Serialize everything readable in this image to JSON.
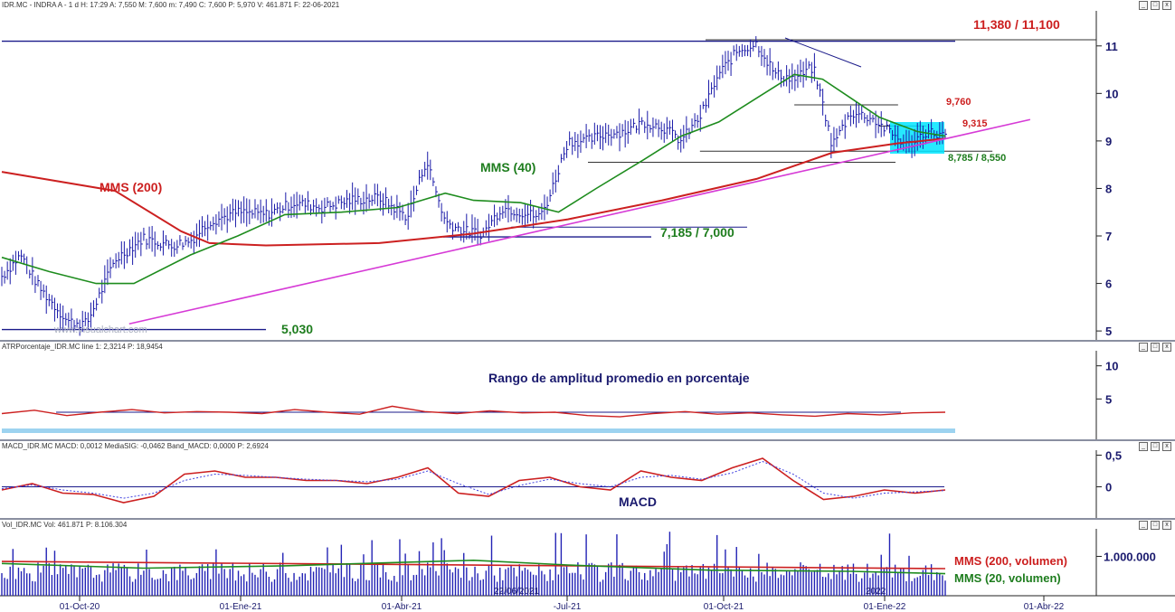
{
  "main_header": "IDR.MC - INDRA A - 1 d H: 17:29 A: 7,550 M: 7,600 m: 7,490 C: 7,600 P: 5,970 V: 461.871 F: 22-06-2021",
  "atr_header": "ATRPorcentaje_IDR.MC line 1: 2,3214 P: 18,9454",
  "macd_header": "MACD_IDR.MC MACD: 0,0012 MediaSIG: -0,0462 Band_MACD: 0,0000 P: 2,6924",
  "vol_header": "Vol_IDR.MC Vol: 461.871 P: 8.106.304",
  "watermark": "www.visualchart.com",
  "annotations": {
    "mms200": "MMS (200)",
    "mms40": "MMS (40)",
    "level_11": "11,380 / 11,100",
    "level_9760": "9,760",
    "level_9315": "9,315",
    "level_8785": "8,785 / 8,550",
    "level_7185": "7,185 / 7,000",
    "level_5030": "5,030",
    "atr_title": "Rango de amplitud promedio en porcentaje",
    "macd_title": "MACD",
    "vol_mms200": "MMS (200, volumen)",
    "vol_mms20": "MMS (20, volumen)",
    "date_marker": "22/06/2021",
    "date_marker2": "2022"
  },
  "window_controls": [
    "_",
    "□",
    "x"
  ],
  "colors": {
    "price_bars": "#1a1aa8",
    "mms200": "#cc2020",
    "mms40": "#1e8c1e",
    "trendline": "#d63ad6",
    "levels": "#1a1a8a",
    "highlight": "#00e5ff",
    "red_text": "#cc1f1f",
    "green_text": "#1e7d1e",
    "axis_text": "#1a1a6e"
  },
  "chart_data": [
    {
      "type": "candlestick",
      "name": "price",
      "ylim": [
        4.85,
        11.7
      ],
      "yticks": [
        5,
        6,
        7,
        8,
        9,
        10,
        11
      ],
      "ytick_labels": [
        "5",
        "6",
        "7",
        "8",
        "9",
        "10",
        "11"
      ],
      "x_dates": [
        "01-Oct-20",
        "01-Ene-21",
        "01-Abr-21",
        "-Jul-21",
        "01-Oct-21",
        "01-Ene-22",
        "01-Abr-22"
      ],
      "x_anchor_values": [
        0.0,
        0.2,
        0.38,
        0.48,
        0.56,
        0.72,
        0.8,
        0.85,
        0.9,
        1.0
      ],
      "x_anchor_prices": [
        6.4,
        6.9,
        7.7,
        7.1,
        8.3,
        9.2,
        11.1,
        9.8,
        9.0,
        9.1
      ],
      "close_path": [
        [
          0.0,
          6.15
        ],
        [
          0.02,
          6.6
        ],
        [
          0.04,
          5.9
        ],
        [
          0.07,
          5.2
        ],
        [
          0.09,
          5.15
        ],
        [
          0.12,
          6.5
        ],
        [
          0.15,
          6.95
        ],
        [
          0.18,
          6.8
        ],
        [
          0.2,
          6.9
        ],
        [
          0.22,
          7.3
        ],
        [
          0.25,
          7.5
        ],
        [
          0.28,
          7.45
        ],
        [
          0.31,
          7.7
        ],
        [
          0.34,
          7.6
        ],
        [
          0.37,
          7.75
        ],
        [
          0.4,
          7.8
        ],
        [
          0.43,
          7.4
        ],
        [
          0.45,
          8.6
        ],
        [
          0.47,
          7.3
        ],
        [
          0.49,
          7.1
        ],
        [
          0.51,
          7.05
        ],
        [
          0.53,
          7.6
        ],
        [
          0.55,
          7.5
        ],
        [
          0.57,
          7.4
        ],
        [
          0.58,
          7.8
        ],
        [
          0.6,
          9.0
        ],
        [
          0.62,
          9.0
        ],
        [
          0.64,
          9.15
        ],
        [
          0.66,
          9.2
        ],
        [
          0.68,
          9.4
        ],
        [
          0.7,
          9.3
        ],
        [
          0.72,
          9.0
        ],
        [
          0.74,
          9.5
        ],
        [
          0.76,
          10.4
        ],
        [
          0.78,
          10.9
        ],
        [
          0.8,
          11.05
        ],
        [
          0.82,
          10.4
        ],
        [
          0.84,
          10.3
        ],
        [
          0.86,
          10.55
        ],
        [
          0.87,
          9.8
        ],
        [
          0.88,
          8.9
        ],
        [
          0.9,
          9.6
        ],
        [
          0.92,
          9.5
        ],
        [
          0.94,
          9.2
        ],
        [
          0.96,
          8.9
        ],
        [
          0.98,
          9.2
        ],
        [
          1.0,
          9.1
        ]
      ],
      "mms200": [
        [
          0.0,
          8.35
        ],
        [
          0.12,
          7.95
        ],
        [
          0.19,
          7.1
        ],
        [
          0.22,
          6.85
        ],
        [
          0.28,
          6.8
        ],
        [
          0.4,
          6.85
        ],
        [
          0.5,
          7.05
        ],
        [
          0.6,
          7.35
        ],
        [
          0.7,
          7.75
        ],
        [
          0.8,
          8.2
        ],
        [
          0.88,
          8.75
        ],
        [
          0.95,
          8.95
        ],
        [
          1.0,
          9.05
        ]
      ],
      "mms40": [
        [
          0.0,
          6.55
        ],
        [
          0.05,
          6.25
        ],
        [
          0.1,
          6.0
        ],
        [
          0.14,
          6.0
        ],
        [
          0.2,
          6.6
        ],
        [
          0.25,
          7.0
        ],
        [
          0.3,
          7.45
        ],
        [
          0.36,
          7.5
        ],
        [
          0.42,
          7.6
        ],
        [
          0.47,
          7.9
        ],
        [
          0.5,
          7.75
        ],
        [
          0.55,
          7.7
        ],
        [
          0.59,
          7.5
        ],
        [
          0.63,
          8.0
        ],
        [
          0.68,
          8.6
        ],
        [
          0.72,
          9.1
        ],
        [
          0.76,
          9.4
        ],
        [
          0.8,
          9.9
        ],
        [
          0.84,
          10.4
        ],
        [
          0.87,
          10.3
        ],
        [
          0.9,
          9.9
        ],
        [
          0.93,
          9.5
        ],
        [
          0.97,
          9.2
        ],
        [
          1.0,
          9.1
        ]
      ],
      "trendline": [
        [
          0.135,
          5.15
        ],
        [
          1.09,
          9.45
        ]
      ],
      "levels": [
        {
          "label": "11,380 / 11,100",
          "value": 11.1,
          "from": 0.0,
          "to": 1.0
        },
        {
          "label": "9,760",
          "value": 9.76,
          "from": 0.84,
          "to": 0.95
        },
        {
          "label": "9,315",
          "value": 9.315,
          "from": 0.93,
          "to": 0.98
        },
        {
          "label": "8,785 / 8,550",
          "value": 8.785,
          "from": 0.74,
          "to": 1.05
        },
        {
          "label": "7,185 / 7,000",
          "value": 7.185,
          "from": 0.54,
          "to": 0.79
        },
        {
          "label": "5,030",
          "value": 5.03,
          "from": 0.0,
          "to": 0.28
        }
      ]
    },
    {
      "type": "line",
      "name": "ATR percentage",
      "title": "Rango de amplitud promedio en porcentaje",
      "ylim": [
        0,
        12
      ],
      "yticks": [
        5,
        10
      ],
      "ytick_labels": [
        "5",
        "10"
      ],
      "series": [
        {
          "values": [
            2.8,
            3.3,
            2.5,
            3.0,
            3.4,
            2.9,
            3.1,
            3.0,
            2.8,
            3.4,
            3.0,
            2.7,
            3.9,
            3.1,
            2.8,
            3.2,
            2.9,
            3.0,
            2.5,
            2.3,
            2.8,
            3.1,
            2.7,
            2.9,
            2.6,
            2.4,
            2.8,
            2.6,
            2.9,
            3.0
          ]
        }
      ]
    },
    {
      "type": "line",
      "name": "MACD",
      "title": "MACD",
      "ylim": [
        -0.45,
        0.55
      ],
      "yticks": [
        0,
        0.5
      ],
      "ytick_labels": [
        "0",
        "0,5"
      ],
      "series": [
        {
          "values": [
            -0.05,
            0.05,
            -0.1,
            -0.12,
            -0.25,
            -0.15,
            0.2,
            0.25,
            0.15,
            0.15,
            0.1,
            0.1,
            0.05,
            0.15,
            0.3,
            -0.1,
            -0.15,
            0.1,
            0.15,
            0.0,
            -0.05,
            0.25,
            0.15,
            0.1,
            0.3,
            0.45,
            0.1,
            -0.2,
            -0.15,
            -0.05,
            -0.1,
            -0.05
          ]
        },
        {
          "values": [
            -0.03,
            0.03,
            -0.05,
            -0.1,
            -0.18,
            -0.1,
            0.1,
            0.2,
            0.18,
            0.15,
            0.12,
            0.1,
            0.08,
            0.12,
            0.25,
            0.05,
            -0.12,
            0.02,
            0.12,
            0.05,
            0.0,
            0.15,
            0.18,
            0.12,
            0.22,
            0.4,
            0.2,
            -0.1,
            -0.18,
            -0.1,
            -0.08,
            -0.06
          ]
        }
      ]
    },
    {
      "type": "bar",
      "name": "Volume",
      "ylim": [
        0,
        1700000
      ],
      "yticks": [
        1000000
      ],
      "ytick_labels": [
        "1.000.000"
      ],
      "mms200_volume": [
        [
          0.0,
          870000
        ],
        [
          1.0,
          690000
        ]
      ],
      "mms20_volume": [
        [
          0.0,
          820000
        ],
        [
          0.15,
          700000
        ],
        [
          0.3,
          760000
        ],
        [
          0.5,
          900000
        ],
        [
          0.6,
          780000
        ],
        [
          0.75,
          650000
        ],
        [
          0.9,
          620000
        ],
        [
          1.0,
          560000
        ]
      ]
    }
  ]
}
